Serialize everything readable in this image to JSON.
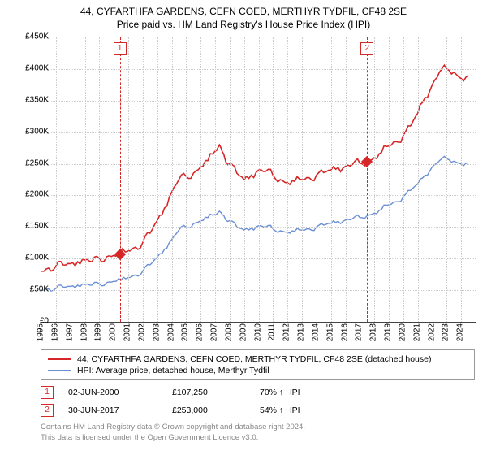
{
  "title_line1": "44, CYFARTHFA GARDENS, CEFN COED, MERTHYR TYDFIL, CF48 2SE",
  "title_line2": "Price paid vs. HM Land Registry's House Price Index (HPI)",
  "chart": {
    "type": "line",
    "background_color": "#ffffff",
    "grid_color": "#cccccc",
    "axis_color": "#444444",
    "x_years": [
      1995,
      1996,
      1997,
      1998,
      1999,
      2000,
      2001,
      2002,
      2003,
      2004,
      2005,
      2006,
      2007,
      2008,
      2009,
      2010,
      2011,
      2012,
      2013,
      2014,
      2015,
      2016,
      2017,
      2018,
      2019,
      2020,
      2021,
      2022,
      2023,
      2024
    ],
    "xlim": [
      1995,
      2025
    ],
    "ylim": [
      0,
      450000
    ],
    "ytick_step": 50000,
    "ytick_prefix": "£",
    "ytick_suffix": "K",
    "series": [
      {
        "name": "property",
        "color": "#d62728",
        "width": 1.6,
        "points": [
          [
            1995,
            80000
          ],
          [
            1995.5,
            85000
          ],
          [
            1996,
            88000
          ],
          [
            1996.5,
            90000
          ],
          [
            1997,
            92000
          ],
          [
            1997.5,
            95000
          ],
          [
            1998,
            98000
          ],
          [
            1998.5,
            95000
          ],
          [
            1999,
            100000
          ],
          [
            1999.5,
            103000
          ],
          [
            2000,
            105000
          ],
          [
            2000.4,
            107250
          ],
          [
            2001,
            112000
          ],
          [
            2001.5,
            118000
          ],
          [
            2002,
            125000
          ],
          [
            2002.5,
            140000
          ],
          [
            2003,
            160000
          ],
          [
            2003.5,
            180000
          ],
          [
            2004,
            205000
          ],
          [
            2004.5,
            225000
          ],
          [
            2005,
            230000
          ],
          [
            2005.5,
            235000
          ],
          [
            2006,
            245000
          ],
          [
            2006.5,
            255000
          ],
          [
            2007,
            270000
          ],
          [
            2007.3,
            280000
          ],
          [
            2007.6,
            265000
          ],
          [
            2008,
            250000
          ],
          [
            2008.5,
            235000
          ],
          [
            2009,
            225000
          ],
          [
            2009.5,
            232000
          ],
          [
            2010,
            240000
          ],
          [
            2010.5,
            238000
          ],
          [
            2011,
            232000
          ],
          [
            2011.5,
            225000
          ],
          [
            2012,
            220000
          ],
          [
            2012.5,
            222000
          ],
          [
            2013,
            225000
          ],
          [
            2013.5,
            228000
          ],
          [
            2014,
            232000
          ],
          [
            2014.5,
            236000
          ],
          [
            2015,
            240000
          ],
          [
            2015.5,
            244000
          ],
          [
            2016,
            246000
          ],
          [
            2016.5,
            249000
          ],
          [
            2017,
            251000
          ],
          [
            2017.5,
            253000
          ],
          [
            2018,
            260000
          ],
          [
            2018.5,
            268000
          ],
          [
            2019,
            278000
          ],
          [
            2019.5,
            285000
          ],
          [
            2020,
            295000
          ],
          [
            2020.5,
            310000
          ],
          [
            2021,
            330000
          ],
          [
            2021.5,
            355000
          ],
          [
            2022,
            375000
          ],
          [
            2022.5,
            395000
          ],
          [
            2023,
            400000
          ],
          [
            2023.5,
            395000
          ],
          [
            2024,
            385000
          ],
          [
            2024.5,
            390000
          ]
        ]
      },
      {
        "name": "hpi",
        "color": "#6b8fd4",
        "width": 1.4,
        "points": [
          [
            1995,
            50000
          ],
          [
            1995.5,
            52000
          ],
          [
            1996,
            53000
          ],
          [
            1996.5,
            55000
          ],
          [
            1997,
            56000
          ],
          [
            1997.5,
            58000
          ],
          [
            1998,
            59000
          ],
          [
            1998.5,
            58000
          ],
          [
            1999,
            60000
          ],
          [
            1999.5,
            62000
          ],
          [
            2000,
            64000
          ],
          [
            2000.5,
            66000
          ],
          [
            2001,
            70000
          ],
          [
            2001.5,
            74000
          ],
          [
            2002,
            80000
          ],
          [
            2002.5,
            90000
          ],
          [
            2003,
            102000
          ],
          [
            2003.5,
            115000
          ],
          [
            2004,
            130000
          ],
          [
            2004.5,
            145000
          ],
          [
            2005,
            150000
          ],
          [
            2005.5,
            155000
          ],
          [
            2006,
            160000
          ],
          [
            2006.5,
            165000
          ],
          [
            2007,
            170000
          ],
          [
            2007.3,
            175000
          ],
          [
            2007.6,
            168000
          ],
          [
            2008,
            160000
          ],
          [
            2008.5,
            150000
          ],
          [
            2009,
            145000
          ],
          [
            2009.5,
            148000
          ],
          [
            2010,
            152000
          ],
          [
            2010.5,
            150000
          ],
          [
            2011,
            147000
          ],
          [
            2011.5,
            144000
          ],
          [
            2012,
            142000
          ],
          [
            2012.5,
            143000
          ],
          [
            2013,
            145000
          ],
          [
            2013.5,
            147000
          ],
          [
            2014,
            150000
          ],
          [
            2014.5,
            153000
          ],
          [
            2015,
            156000
          ],
          [
            2015.5,
            159000
          ],
          [
            2016,
            161000
          ],
          [
            2016.5,
            163000
          ],
          [
            2017,
            165000
          ],
          [
            2017.5,
            168000
          ],
          [
            2018,
            172000
          ],
          [
            2018.5,
            178000
          ],
          [
            2019,
            185000
          ],
          [
            2019.5,
            190000
          ],
          [
            2020,
            198000
          ],
          [
            2020.5,
            208000
          ],
          [
            2021,
            218000
          ],
          [
            2021.5,
            232000
          ],
          [
            2022,
            245000
          ],
          [
            2022.5,
            255000
          ],
          [
            2023,
            258000
          ],
          [
            2023.5,
            254000
          ],
          [
            2024,
            250000
          ],
          [
            2024.5,
            252000
          ]
        ]
      }
    ],
    "sales": [
      {
        "n": "1",
        "year": 2000.42,
        "price": 107250,
        "color": "#d62728"
      },
      {
        "n": "2",
        "year": 2017.5,
        "price": 253000,
        "color": "#d62728"
      }
    ]
  },
  "legend": {
    "items": [
      {
        "color": "#d62728",
        "label": "44, CYFARTHFA GARDENS, CEFN COED, MERTHYR TYDFIL, CF48 2SE (detached house)"
      },
      {
        "color": "#6b8fd4",
        "label": "HPI: Average price, detached house, Merthyr Tydfil"
      }
    ]
  },
  "sales_table": [
    {
      "n": "1",
      "color": "#d62728",
      "date": "02-JUN-2000",
      "price": "£107,250",
      "rel": "70% ↑ HPI"
    },
    {
      "n": "2",
      "color": "#d62728",
      "date": "30-JUN-2017",
      "price": "£253,000",
      "rel": "54% ↑ HPI"
    }
  ],
  "copyright_line1": "Contains HM Land Registry data © Crown copyright and database right 2024.",
  "copyright_line2": "This data is licensed under the Open Government Licence v3.0."
}
